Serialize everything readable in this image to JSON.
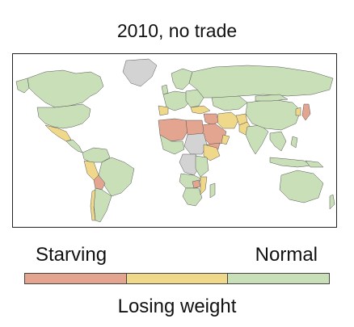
{
  "title": "2010, no trade",
  "legend": {
    "left_label": "Starving",
    "right_label": "Normal",
    "bottom_label": "Losing weight",
    "categories": [
      {
        "name": "Starving",
        "color": "#e3a58f"
      },
      {
        "name": "Losing weight",
        "color": "#f0d88a"
      },
      {
        "name": "Normal",
        "color": "#c8dfb8"
      }
    ]
  },
  "colors": {
    "normal": "#c8dfb8",
    "losing_weight": "#f0d88a",
    "starving": "#e3a58f",
    "no_data": "#d3d3d3",
    "border": "#555555"
  }
}
